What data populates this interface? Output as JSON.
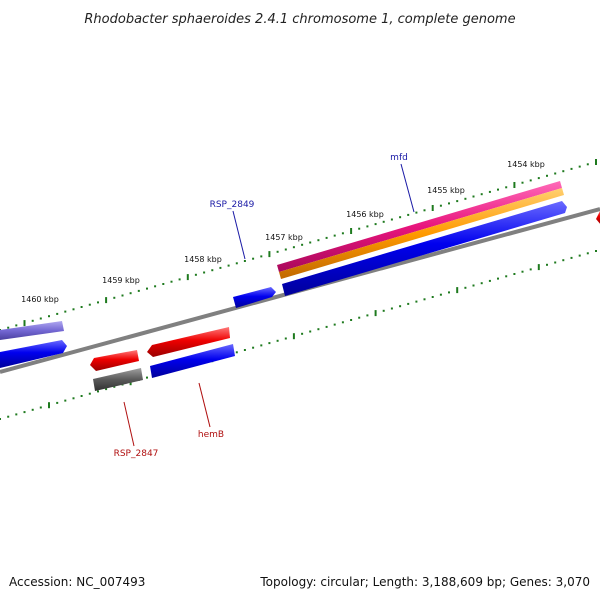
{
  "title": "Rhodobacter sphaeroides 2.4.1 chromosome 1, complete genome",
  "scale_labels": [
    "1460 kbp",
    "1459 kbp",
    "1458 kbp",
    "1457 kbp",
    "1456 kbp",
    "1455 kbp",
    "1454 kbp"
  ],
  "gene_labels": {
    "mfd": "mfd",
    "rsp2849": "RSP_2849",
    "rsp2847": "RSP_2847",
    "hemb": "hemB"
  },
  "colors": {
    "forward_cds": "#0000e8",
    "reverse_cds": "#e00000",
    "backbone": "#808080",
    "ticks": "#1e7a1e",
    "label_blue": "#1a1aa6",
    "label_red": "#b01010",
    "pink": "#e8157d",
    "orange": "#ff9a00",
    "lavender": "#7468d4",
    "gray_feature": "#5a5a5a"
  },
  "footer": {
    "accession": "Accession: NC_007493",
    "topology": "Topology: circular; Length: 3,188,609 bp; Genes: 3,070"
  }
}
